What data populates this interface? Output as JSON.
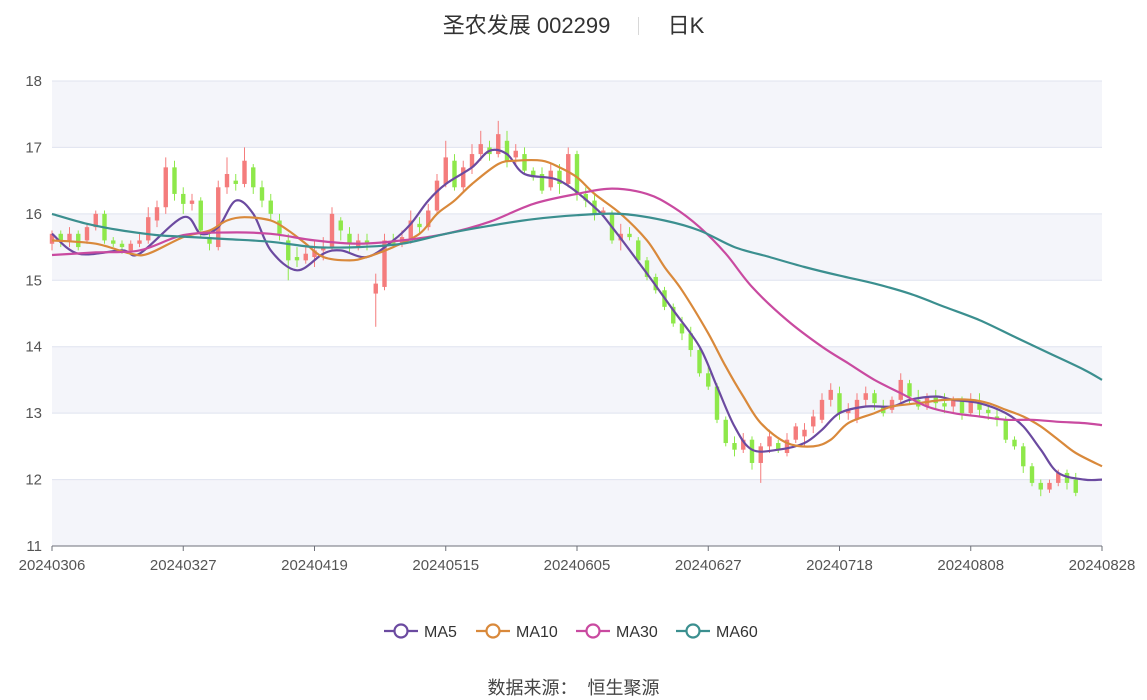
{
  "chart_data": {
    "type": "candlestick",
    "title": {
      "name": "圣农发展",
      "code": "002299",
      "period": "日K"
    },
    "source_label": "数据来源：",
    "source_name": "恒生聚源",
    "ylim": [
      11,
      18
    ],
    "yticks": [
      11,
      12,
      13,
      14,
      15,
      16,
      17,
      18
    ],
    "x_tick_labels": [
      "20240306",
      "20240327",
      "20240419",
      "20240515",
      "20240605",
      "20240627",
      "20240718",
      "20240808",
      "20240828"
    ],
    "x_tick_index": [
      0,
      15,
      30,
      45,
      60,
      75,
      90,
      105,
      119
    ],
    "up_color": "#f47c7c",
    "down_color": "#8ee84a",
    "band_color": "#f4f5fa",
    "grid_color": "#dfe3ef",
    "legend": [
      {
        "name": "MA5",
        "color": "#6b4aa0"
      },
      {
        "name": "MA10",
        "color": "#d9893b"
      },
      {
        "name": "MA30",
        "color": "#c94aa0"
      },
      {
        "name": "MA60",
        "color": "#3b8f8f"
      }
    ],
    "series_anchors": {
      "MA5": [
        [
          0,
          15.7
        ],
        [
          3,
          15.4
        ],
        [
          8,
          15.45
        ],
        [
          10,
          15.4
        ],
        [
          15,
          15.95
        ],
        [
          17,
          15.7
        ],
        [
          19,
          15.8
        ],
        [
          21,
          16.2
        ],
        [
          23,
          16.0
        ],
        [
          25,
          15.45
        ],
        [
          28,
          15.15
        ],
        [
          31,
          15.4
        ],
        [
          33,
          15.45
        ],
        [
          36,
          15.35
        ],
        [
          39,
          15.6
        ],
        [
          41,
          15.85
        ],
        [
          43,
          16.2
        ],
        [
          45,
          16.45
        ],
        [
          48,
          16.7
        ],
        [
          50,
          16.95
        ],
        [
          52,
          16.9
        ],
        [
          54,
          16.6
        ],
        [
          58,
          16.5
        ],
        [
          62,
          16.1
        ],
        [
          64,
          15.8
        ],
        [
          68,
          15.1
        ],
        [
          71,
          14.55
        ],
        [
          74,
          14.0
        ],
        [
          76,
          13.4
        ],
        [
          78,
          12.8
        ],
        [
          80,
          12.45
        ],
        [
          83,
          12.45
        ],
        [
          86,
          12.55
        ],
        [
          88,
          12.75
        ],
        [
          90,
          13.0
        ],
        [
          93,
          13.1
        ],
        [
          96,
          13.1
        ],
        [
          98,
          13.2
        ],
        [
          101,
          13.25
        ],
        [
          103,
          13.2
        ],
        [
          106,
          13.15
        ],
        [
          109,
          13.0
        ],
        [
          111,
          12.8
        ],
        [
          113,
          12.45
        ],
        [
          115,
          12.1
        ],
        [
          118,
          12.0
        ],
        [
          120,
          12.0
        ]
      ],
      "MA10": [
        [
          0,
          15.6
        ],
        [
          5,
          15.55
        ],
        [
          9,
          15.4
        ],
        [
          11,
          15.4
        ],
        [
          15,
          15.65
        ],
        [
          18,
          15.75
        ],
        [
          20,
          15.9
        ],
        [
          22,
          15.95
        ],
        [
          25,
          15.9
        ],
        [
          27,
          15.75
        ],
        [
          29,
          15.55
        ],
        [
          31,
          15.35
        ],
        [
          34,
          15.3
        ],
        [
          36,
          15.35
        ],
        [
          39,
          15.5
        ],
        [
          42,
          15.7
        ],
        [
          44,
          16.0
        ],
        [
          46,
          16.2
        ],
        [
          48,
          16.45
        ],
        [
          51,
          16.75
        ],
        [
          53,
          16.8
        ],
        [
          56,
          16.8
        ],
        [
          58,
          16.7
        ],
        [
          60,
          16.55
        ],
        [
          62,
          16.3
        ],
        [
          65,
          16.0
        ],
        [
          68,
          15.6
        ],
        [
          70,
          15.2
        ],
        [
          72,
          14.85
        ],
        [
          75,
          14.2
        ],
        [
          77,
          13.7
        ],
        [
          79,
          13.25
        ],
        [
          81,
          12.85
        ],
        [
          84,
          12.55
        ],
        [
          87,
          12.5
        ],
        [
          89,
          12.6
        ],
        [
          91,
          12.85
        ],
        [
          94,
          13.0
        ],
        [
          96,
          13.1
        ],
        [
          99,
          13.15
        ],
        [
          102,
          13.2
        ],
        [
          105,
          13.2
        ],
        [
          107,
          13.15
        ],
        [
          109,
          13.05
        ],
        [
          111,
          12.95
        ],
        [
          113,
          12.8
        ],
        [
          115,
          12.6
        ],
        [
          117,
          12.4
        ],
        [
          120,
          12.2
        ]
      ],
      "MA30": [
        [
          0,
          15.38
        ],
        [
          5,
          15.42
        ],
        [
          10,
          15.45
        ],
        [
          15,
          15.68
        ],
        [
          20,
          15.72
        ],
        [
          25,
          15.7
        ],
        [
          30,
          15.6
        ],
        [
          35,
          15.55
        ],
        [
          40,
          15.6
        ],
        [
          45,
          15.7
        ],
        [
          50,
          15.88
        ],
        [
          55,
          16.15
        ],
        [
          60,
          16.3
        ],
        [
          64,
          16.38
        ],
        [
          68,
          16.3
        ],
        [
          71,
          16.1
        ],
        [
          74,
          15.8
        ],
        [
          77,
          15.4
        ],
        [
          80,
          14.9
        ],
        [
          84,
          14.4
        ],
        [
          88,
          14.0
        ],
        [
          91,
          13.75
        ],
        [
          94,
          13.5
        ],
        [
          97,
          13.3
        ],
        [
          100,
          13.1
        ],
        [
          103,
          13.0
        ],
        [
          106,
          12.95
        ],
        [
          109,
          12.9
        ],
        [
          112,
          12.9
        ],
        [
          115,
          12.87
        ],
        [
          118,
          12.85
        ],
        [
          120,
          12.82
        ]
      ],
      "MA60": [
        [
          0,
          16.0
        ],
        [
          4,
          15.85
        ],
        [
          8,
          15.75
        ],
        [
          12,
          15.68
        ],
        [
          16,
          15.65
        ],
        [
          20,
          15.62
        ],
        [
          25,
          15.58
        ],
        [
          30,
          15.5
        ],
        [
          35,
          15.5
        ],
        [
          40,
          15.55
        ],
        [
          45,
          15.7
        ],
        [
          50,
          15.82
        ],
        [
          55,
          15.92
        ],
        [
          60,
          15.98
        ],
        [
          65,
          16.0
        ],
        [
          70,
          15.9
        ],
        [
          74,
          15.75
        ],
        [
          78,
          15.5
        ],
        [
          82,
          15.35
        ],
        [
          86,
          15.2
        ],
        [
          90,
          15.07
        ],
        [
          94,
          14.95
        ],
        [
          98,
          14.8
        ],
        [
          102,
          14.6
        ],
        [
          106,
          14.4
        ],
        [
          110,
          14.15
        ],
        [
          114,
          13.9
        ],
        [
          118,
          13.65
        ],
        [
          120,
          13.5
        ]
      ]
    },
    "candles_ohlc": [
      [
        15.55,
        15.7,
        15.45,
        15.75
      ],
      [
        15.7,
        15.6,
        15.5,
        15.75
      ],
      [
        15.6,
        15.7,
        15.5,
        15.8
      ],
      [
        15.7,
        15.5,
        15.45,
        15.75
      ],
      [
        15.6,
        15.8,
        15.55,
        15.85
      ],
      [
        15.8,
        16.0,
        15.75,
        16.05
      ],
      [
        16.0,
        15.6,
        15.55,
        16.05
      ],
      [
        15.6,
        15.55,
        15.5,
        15.65
      ],
      [
        15.55,
        15.5,
        15.4,
        15.6
      ],
      [
        15.45,
        15.55,
        15.4,
        15.6
      ],
      [
        15.55,
        15.6,
        15.5,
        15.7
      ],
      [
        15.6,
        15.95,
        15.55,
        16.1
      ],
      [
        15.9,
        16.1,
        15.8,
        16.2
      ],
      [
        16.1,
        16.7,
        16.0,
        16.85
      ],
      [
        16.7,
        16.3,
        16.2,
        16.8
      ],
      [
        16.3,
        16.15,
        16.0,
        16.4
      ],
      [
        16.15,
        16.2,
        16.05,
        16.3
      ],
      [
        16.2,
        15.75,
        15.65,
        16.25
      ],
      [
        15.65,
        15.55,
        15.45,
        15.75
      ],
      [
        15.5,
        16.4,
        15.45,
        16.5
      ],
      [
        16.4,
        16.6,
        16.3,
        16.85
      ],
      [
        16.5,
        16.45,
        16.35,
        16.6
      ],
      [
        16.45,
        16.8,
        16.4,
        17.0
      ],
      [
        16.7,
        16.4,
        16.3,
        16.75
      ],
      [
        16.4,
        16.2,
        16.1,
        16.5
      ],
      [
        16.2,
        16.0,
        15.9,
        16.3
      ],
      [
        15.9,
        15.7,
        15.6,
        16.0
      ],
      [
        15.6,
        15.3,
        15.0,
        15.7
      ],
      [
        15.35,
        15.3,
        15.2,
        15.5
      ],
      [
        15.3,
        15.4,
        15.25,
        15.5
      ],
      [
        15.35,
        15.45,
        15.2,
        15.6
      ],
      [
        15.45,
        15.5,
        15.3,
        15.65
      ],
      [
        15.5,
        16.0,
        15.45,
        16.1
      ],
      [
        15.9,
        15.75,
        15.6,
        15.95
      ],
      [
        15.7,
        15.55,
        15.4,
        15.8
      ],
      [
        15.5,
        15.6,
        15.45,
        15.7
      ],
      [
        15.6,
        15.55,
        15.45,
        15.7
      ],
      [
        14.8,
        14.95,
        14.3,
        15.1
      ],
      [
        14.9,
        15.6,
        14.85,
        15.7
      ],
      [
        15.6,
        15.55,
        15.5,
        15.7
      ],
      [
        15.55,
        15.65,
        15.5,
        15.75
      ],
      [
        15.6,
        15.9,
        15.55,
        16.05
      ],
      [
        15.85,
        15.8,
        15.7,
        15.95
      ],
      [
        15.8,
        16.05,
        15.75,
        16.15
      ],
      [
        16.05,
        16.5,
        16.0,
        16.6
      ],
      [
        16.45,
        16.85,
        16.4,
        17.1
      ],
      [
        16.8,
        16.4,
        16.35,
        16.9
      ],
      [
        16.4,
        16.7,
        16.35,
        16.8
      ],
      [
        16.7,
        16.9,
        16.6,
        17.05
      ],
      [
        16.9,
        17.05,
        16.8,
        17.25
      ],
      [
        17.0,
        16.9,
        16.8,
        17.1
      ],
      [
        16.9,
        17.2,
        16.85,
        17.4
      ],
      [
        17.1,
        16.8,
        16.7,
        17.25
      ],
      [
        16.85,
        16.95,
        16.75,
        17.05
      ],
      [
        16.9,
        16.65,
        16.6,
        17.0
      ],
      [
        16.65,
        16.55,
        16.5,
        16.7
      ],
      [
        16.6,
        16.35,
        16.3,
        16.7
      ],
      [
        16.4,
        16.65,
        16.35,
        16.75
      ],
      [
        16.65,
        16.45,
        16.3,
        16.75
      ],
      [
        16.45,
        16.9,
        16.4,
        17.0
      ],
      [
        16.9,
        16.3,
        16.2,
        16.95
      ],
      [
        16.3,
        16.2,
        16.1,
        16.4
      ],
      [
        16.2,
        16.0,
        15.9,
        16.3
      ],
      [
        16.0,
        16.05,
        15.95,
        16.1
      ],
      [
        16.0,
        15.6,
        15.55,
        16.05
      ],
      [
        15.6,
        15.7,
        15.45,
        15.85
      ],
      [
        15.7,
        15.65,
        15.6,
        15.8
      ],
      [
        15.6,
        15.3,
        15.25,
        15.65
      ],
      [
        15.3,
        15.05,
        15.0,
        15.35
      ],
      [
        15.05,
        14.85,
        14.8,
        15.1
      ],
      [
        14.85,
        14.6,
        14.55,
        14.9
      ],
      [
        14.6,
        14.35,
        14.3,
        14.65
      ],
      [
        14.35,
        14.2,
        14.1,
        14.45
      ],
      [
        14.2,
        13.95,
        13.85,
        14.3
      ],
      [
        13.95,
        13.6,
        13.55,
        14.0
      ],
      [
        13.6,
        13.4,
        13.35,
        13.7
      ],
      [
        13.4,
        12.9,
        12.85,
        13.45
      ],
      [
        12.9,
        12.55,
        12.5,
        12.95
      ],
      [
        12.55,
        12.45,
        12.35,
        12.65
      ],
      [
        12.45,
        12.6,
        12.4,
        12.7
      ],
      [
        12.6,
        12.25,
        12.15,
        12.65
      ],
      [
        12.25,
        12.5,
        11.95,
        12.55
      ],
      [
        12.5,
        12.65,
        12.4,
        12.75
      ],
      [
        12.55,
        12.45,
        12.4,
        12.6
      ],
      [
        12.4,
        12.6,
        12.35,
        12.7
      ],
      [
        12.6,
        12.8,
        12.55,
        12.85
      ],
      [
        12.65,
        12.75,
        12.5,
        12.85
      ],
      [
        12.8,
        12.95,
        12.7,
        13.05
      ],
      [
        12.9,
        13.2,
        12.85,
        13.3
      ],
      [
        13.2,
        13.35,
        13.1,
        13.45
      ],
      [
        13.3,
        13.0,
        12.9,
        13.4
      ],
      [
        13.0,
        13.05,
        12.9,
        13.15
      ],
      [
        12.9,
        13.2,
        12.85,
        13.3
      ],
      [
        13.2,
        13.3,
        13.1,
        13.4
      ],
      [
        13.3,
        13.15,
        13.05,
        13.35
      ],
      [
        13.1,
        13.0,
        12.95,
        13.2
      ],
      [
        13.05,
        13.2,
        13.0,
        13.25
      ],
      [
        13.2,
        13.5,
        13.15,
        13.6
      ],
      [
        13.45,
        13.25,
        13.15,
        13.5
      ],
      [
        13.2,
        13.1,
        13.05,
        13.35
      ],
      [
        13.1,
        13.25,
        13.05,
        13.3
      ],
      [
        13.25,
        13.15,
        13.05,
        13.35
      ],
      [
        13.15,
        13.1,
        13.0,
        13.3
      ],
      [
        13.1,
        13.2,
        13.0,
        13.25
      ],
      [
        13.2,
        13.0,
        12.9,
        13.25
      ],
      [
        13.0,
        13.2,
        12.95,
        13.3
      ],
      [
        13.15,
        13.05,
        12.95,
        13.3
      ],
      [
        13.05,
        13.0,
        12.9,
        13.1
      ],
      [
        12.95,
        12.9,
        12.8,
        13.05
      ],
      [
        12.9,
        12.6,
        12.55,
        12.95
      ],
      [
        12.6,
        12.5,
        12.45,
        12.65
      ],
      [
        12.5,
        12.2,
        12.1,
        12.55
      ],
      [
        12.2,
        11.95,
        11.9,
        12.25
      ],
      [
        11.95,
        11.85,
        11.75,
        12.0
      ],
      [
        11.85,
        11.95,
        11.8,
        12.0
      ],
      [
        11.95,
        12.1,
        11.9,
        12.15
      ],
      [
        12.1,
        11.95,
        11.85,
        12.15
      ],
      [
        12.0,
        11.8,
        11.75,
        12.1
      ]
    ]
  }
}
